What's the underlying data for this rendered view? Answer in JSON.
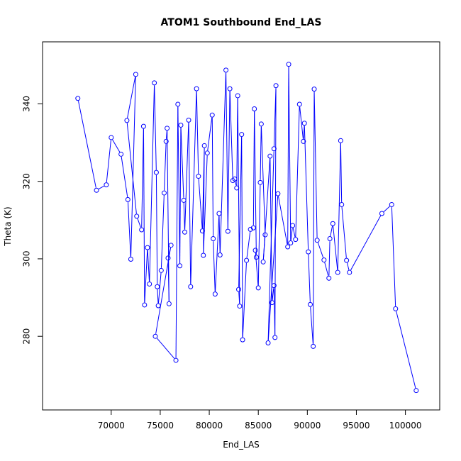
{
  "chart_data": {
    "type": "line",
    "title": "ATOM1 Southbound End_LAS",
    "xlabel": "End_LAS",
    "ylabel": "Theta (K)",
    "xlim": [
      63000,
      103500
    ],
    "ylim": [
      261,
      356
    ],
    "xticks": [
      70000,
      75000,
      80000,
      85000,
      90000,
      95000,
      100000
    ],
    "yticks": [
      280,
      300,
      320,
      340
    ],
    "grid": false,
    "series_color": "#0000ff",
    "markers": "open-circle",
    "x": [
      66600,
      68500,
      69500,
      70000,
      71000,
      71700,
      72000,
      72500,
      71600,
      72600,
      73100,
      73300,
      73400,
      73700,
      73900,
      74400,
      74600,
      74700,
      74800,
      75100,
      75400,
      75600,
      75700,
      75900,
      75800,
      76100,
      74500,
      76600,
      76800,
      77000,
      77100,
      77400,
      77500,
      77900,
      78100,
      78700,
      78900,
      79300,
      79500,
      79400,
      79800,
      80300,
      80400,
      80600,
      81000,
      81100,
      81700,
      81900,
      82100,
      82400,
      82600,
      82800,
      82900,
      83100,
      83000,
      83300,
      83400,
      83800,
      84200,
      84500,
      84600,
      84800,
      84700,
      85000,
      85200,
      85300,
      85700,
      85500,
      86200,
      86400,
      86600,
      86700,
      86800,
      86600,
      86000,
      87000,
      88000,
      88100,
      88300,
      88500,
      88800,
      89200,
      89600,
      89700,
      90100,
      90300,
      90600,
      90700,
      91000,
      91700,
      92200,
      92300,
      92600,
      93100,
      93400,
      93500,
      94000,
      94300,
      97600,
      98600,
      99000,
      101100
    ],
    "y": [
      341.4,
      317.7,
      319.1,
      331.3,
      327.0,
      315.3,
      299.9,
      347.6,
      335.7,
      311.0,
      307.5,
      334.2,
      288.1,
      302.9,
      293.5,
      345.4,
      322.3,
      292.8,
      287.9,
      297.0,
      317.0,
      330.3,
      333.7,
      288.4,
      300.2,
      303.5,
      280.0,
      273.8,
      339.9,
      298.2,
      334.5,
      315.1,
      306.9,
      335.8,
      292.8,
      343.9,
      321.3,
      307.2,
      329.2,
      300.9,
      327.3,
      337.1,
      305.2,
      290.9,
      311.7,
      301.0,
      348.7,
      307.1,
      343.9,
      320.2,
      320.6,
      318.3,
      342.1,
      287.8,
      292.1,
      332.1,
      279.1,
      299.6,
      307.6,
      308.0,
      338.7,
      300.4,
      302.2,
      292.5,
      319.7,
      334.8,
      306.2,
      299.2,
      326.5,
      288.7,
      293.1,
      279.7,
      344.7,
      328.4,
      278.3,
      316.8,
      303.1,
      350.2,
      304.1,
      308.6,
      305.0,
      339.9,
      330.3,
      335.0,
      301.8,
      288.2,
      277.4,
      343.8,
      304.8,
      299.7,
      295.0,
      305.2,
      309.1,
      296.5,
      330.5,
      314.0,
      299.6,
      296.5,
      311.7,
      314.0,
      287.1,
      266.0
    ]
  }
}
